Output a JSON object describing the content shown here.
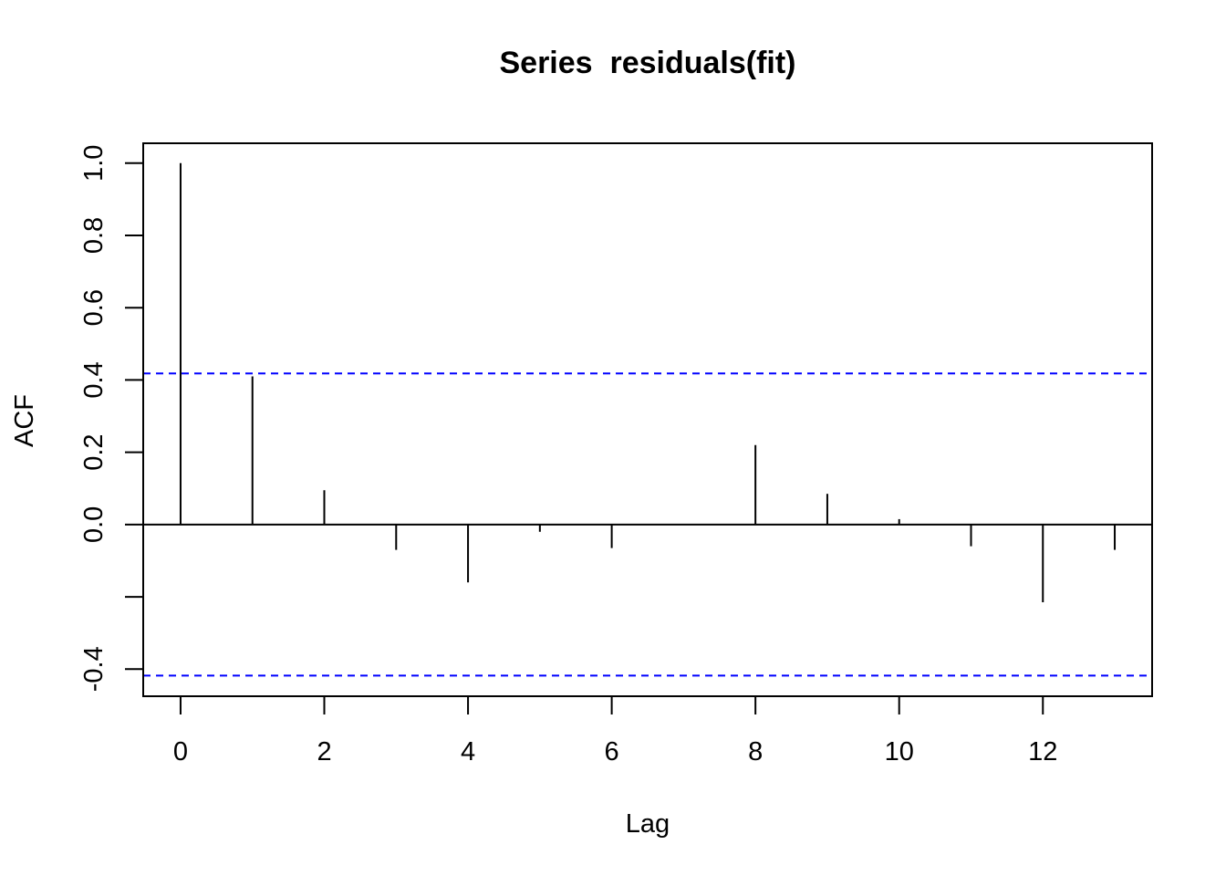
{
  "chart_data": {
    "type": "bar",
    "title": "Series  residuals(fit)",
    "xlabel": "Lag",
    "ylabel": "ACF",
    "xlim": [
      -0.52,
      13.52
    ],
    "ylim": [
      -0.475,
      1.055
    ],
    "x_ticks": [
      0,
      2,
      4,
      6,
      8,
      10,
      12
    ],
    "x_tick_labels": [
      "0",
      "2",
      "4",
      "6",
      "8",
      "10",
      "12"
    ],
    "y_ticks": [
      -0.4,
      -0.2,
      0.0,
      0.2,
      0.4,
      0.6,
      0.8,
      1.0
    ],
    "y_tick_labels": [
      "-0.4",
      "",
      "0.0",
      "0.2",
      "0.4",
      "0.6",
      "0.8",
      "1.0"
    ],
    "lags": [
      0,
      1,
      2,
      3,
      4,
      5,
      6,
      7,
      8,
      9,
      10,
      11,
      12,
      13
    ],
    "values": [
      1.0,
      0.41,
      0.095,
      -0.07,
      -0.16,
      -0.02,
      -0.065,
      0.0,
      0.22,
      0.085,
      0.015,
      -0.06,
      -0.215,
      -0.07
    ],
    "confidence_bound": 0.418,
    "bar_color": "#000000",
    "ci_color": "#0000ff",
    "grid": false
  }
}
